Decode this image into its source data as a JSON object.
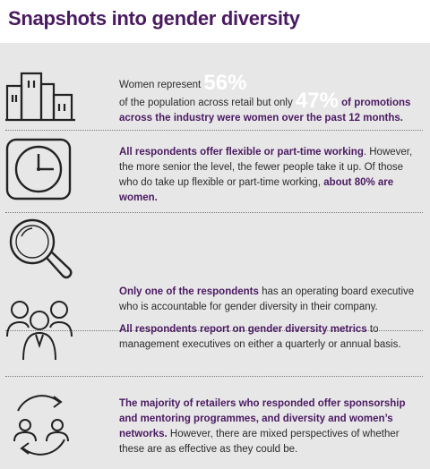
{
  "title": "Snapshots into gender diversity",
  "sections": [
    {
      "icon": "buildings-icon",
      "p1": "Women represent ",
      "big1": "56%",
      "p2": "of the population across retail but only ",
      "big2": "47%",
      "p3": " of promotions across the industry were women over the past 12 months."
    },
    {
      "icon": "clock-icon",
      "b1": "All respondents offer flexible or part-time working",
      "t1": ". However, the more senior the level, the fewer people take it up. Of those who do take up flexible or part-time working, ",
      "b2": "about 80% are women."
    },
    {
      "icon": "magnifier-icon",
      "b1": "Only one of the respondents",
      "t1": " has an operating board executive who is accountable for gender diversity in their company."
    },
    {
      "icon": "people-group-icon",
      "b1": "All respondents report on gender diversity metrics",
      "t1": " to management executives on either a quarterly or annual basis."
    },
    {
      "icon": "exchange-people-icon",
      "b1": "The majority of retailers who responded offer sponsorship and mentoring programmes, and diversity and women’s networks.",
      "t1": " However, there are mixed perspectives of whether these are as effective as they could be."
    }
  ]
}
